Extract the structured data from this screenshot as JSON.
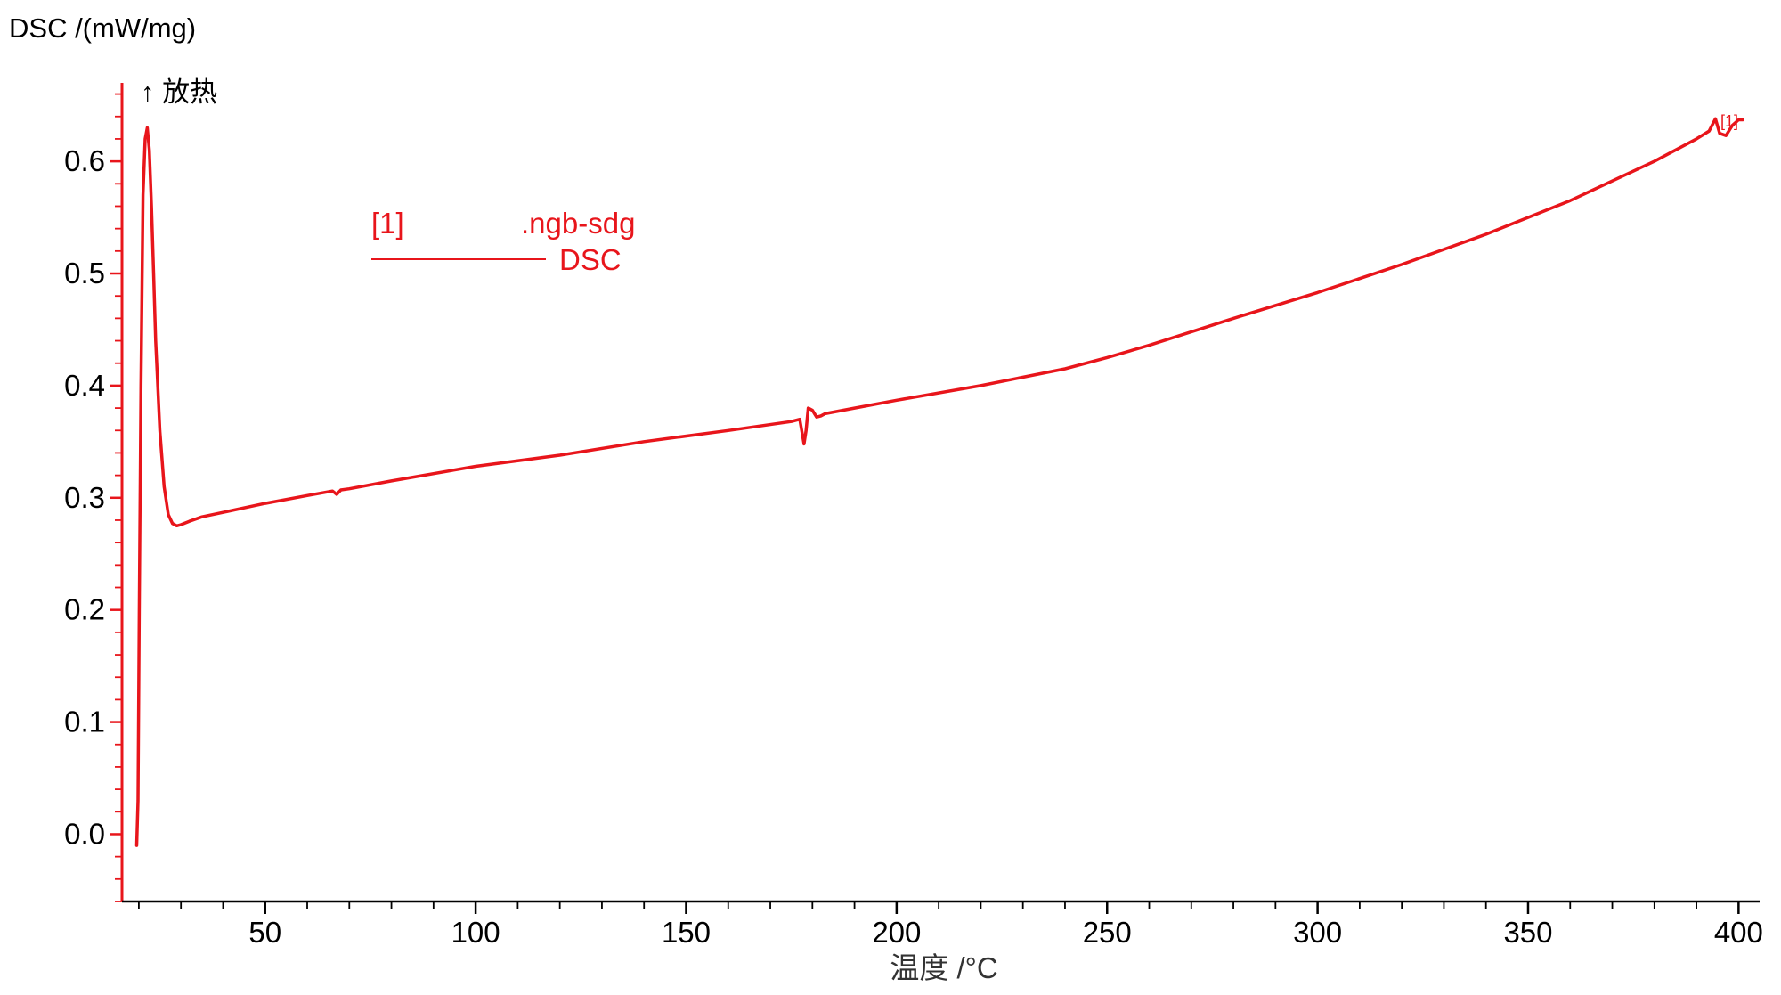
{
  "chart_data": {
    "type": "line",
    "ylabel": "DSC /(mW/mg)",
    "xlabel": "温度 /°C",
    "exo_label": "↑ 放热",
    "xlim": [
      16,
      405
    ],
    "ylim": [
      -0.06,
      0.67
    ],
    "x_ticks": [
      50,
      100,
      150,
      200,
      250,
      300,
      350,
      400
    ],
    "y_ticks": [
      0.0,
      0.1,
      0.2,
      0.3,
      0.4,
      0.5,
      0.6
    ],
    "x_tick_labels": [
      "50",
      "100",
      "150",
      "200",
      "250",
      "300",
      "350",
      "400"
    ],
    "y_tick_labels": [
      "0.0",
      "0.1",
      "0.2",
      "0.3",
      "0.4",
      "0.5",
      "0.6"
    ],
    "grid": false,
    "legend": {
      "placement": "top-left",
      "tag": "[1]",
      "file": ".ngb-sdg",
      "series": "DSC"
    },
    "end_marker": "[1]",
    "color": "#e8151b",
    "series": [
      {
        "name": "DSC",
        "x": [
          19.5,
          19.8,
          20.1,
          20.5,
          21.0,
          21.5,
          22.0,
          22.5,
          23.0,
          23.5,
          24.0,
          25.0,
          26.0,
          27.0,
          28.0,
          29.0,
          30.0,
          32.0,
          35.0,
          40.0,
          50.0,
          60.0,
          66.0,
          67.0,
          68.0,
          70.0,
          80.0,
          100.0,
          120.0,
          140.0,
          160.0,
          175.0,
          177.0,
          178.0,
          178.5,
          179.0,
          180.0,
          181.0,
          182.0,
          183.0,
          190.0,
          200.0,
          220.0,
          240.0,
          250.0,
          260.0,
          280.0,
          300.0,
          320.0,
          340.0,
          360.0,
          380.0,
          390.0,
          393.0,
          394.5,
          395.5,
          397.0,
          398.5,
          400.0,
          401.0
        ],
        "y": [
          -0.01,
          0.03,
          0.2,
          0.4,
          0.57,
          0.62,
          0.63,
          0.61,
          0.56,
          0.5,
          0.44,
          0.36,
          0.31,
          0.285,
          0.277,
          0.275,
          0.276,
          0.279,
          0.283,
          0.287,
          0.295,
          0.302,
          0.306,
          0.303,
          0.307,
          0.308,
          0.315,
          0.328,
          0.338,
          0.35,
          0.36,
          0.368,
          0.37,
          0.348,
          0.36,
          0.38,
          0.378,
          0.372,
          0.373,
          0.375,
          0.38,
          0.387,
          0.4,
          0.415,
          0.425,
          0.436,
          0.46,
          0.483,
          0.508,
          0.535,
          0.565,
          0.6,
          0.62,
          0.627,
          0.638,
          0.625,
          0.623,
          0.632,
          0.637,
          0.637
        ]
      }
    ]
  }
}
